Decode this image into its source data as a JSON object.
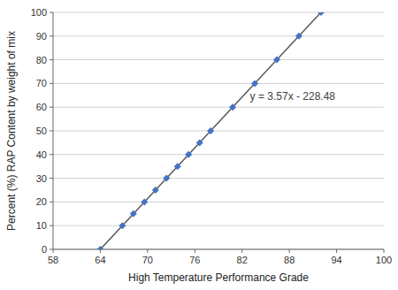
{
  "chart_data": {
    "type": "scatter",
    "title": "",
    "xlabel": "High Temperature Performance Grade",
    "ylabel": "Percent (%) RAP Content by weight of mix",
    "xlim": [
      58,
      100
    ],
    "ylim": [
      0,
      100
    ],
    "xticks": [
      58,
      64,
      70,
      76,
      82,
      88,
      94,
      100
    ],
    "yticks": [
      0,
      10,
      20,
      30,
      40,
      50,
      60,
      70,
      80,
      90,
      100
    ],
    "grid": true,
    "series": [
      {
        "type": "scatter",
        "marker": "diamond",
        "color": "#4472C4",
        "x": [
          64,
          66.80112,
          68.201681,
          69.602241,
          71.002801,
          72.403361,
          73.803922,
          75.204482,
          76.605042,
          78.005602,
          80.806723,
          83.607843,
          86.408964,
          89.210084,
          92.011204
        ],
        "values": [
          0,
          10,
          15,
          20,
          25,
          30,
          35,
          40,
          45,
          50,
          60,
          70,
          80,
          90,
          100
        ]
      },
      {
        "type": "line",
        "color": "#595959",
        "x": [
          64,
          92.011204
        ],
        "values": [
          0,
          100
        ]
      }
    ],
    "annotations": [
      {
        "text": "y = 3.57x - 228.48",
        "x": 83,
        "y": 63
      }
    ]
  }
}
